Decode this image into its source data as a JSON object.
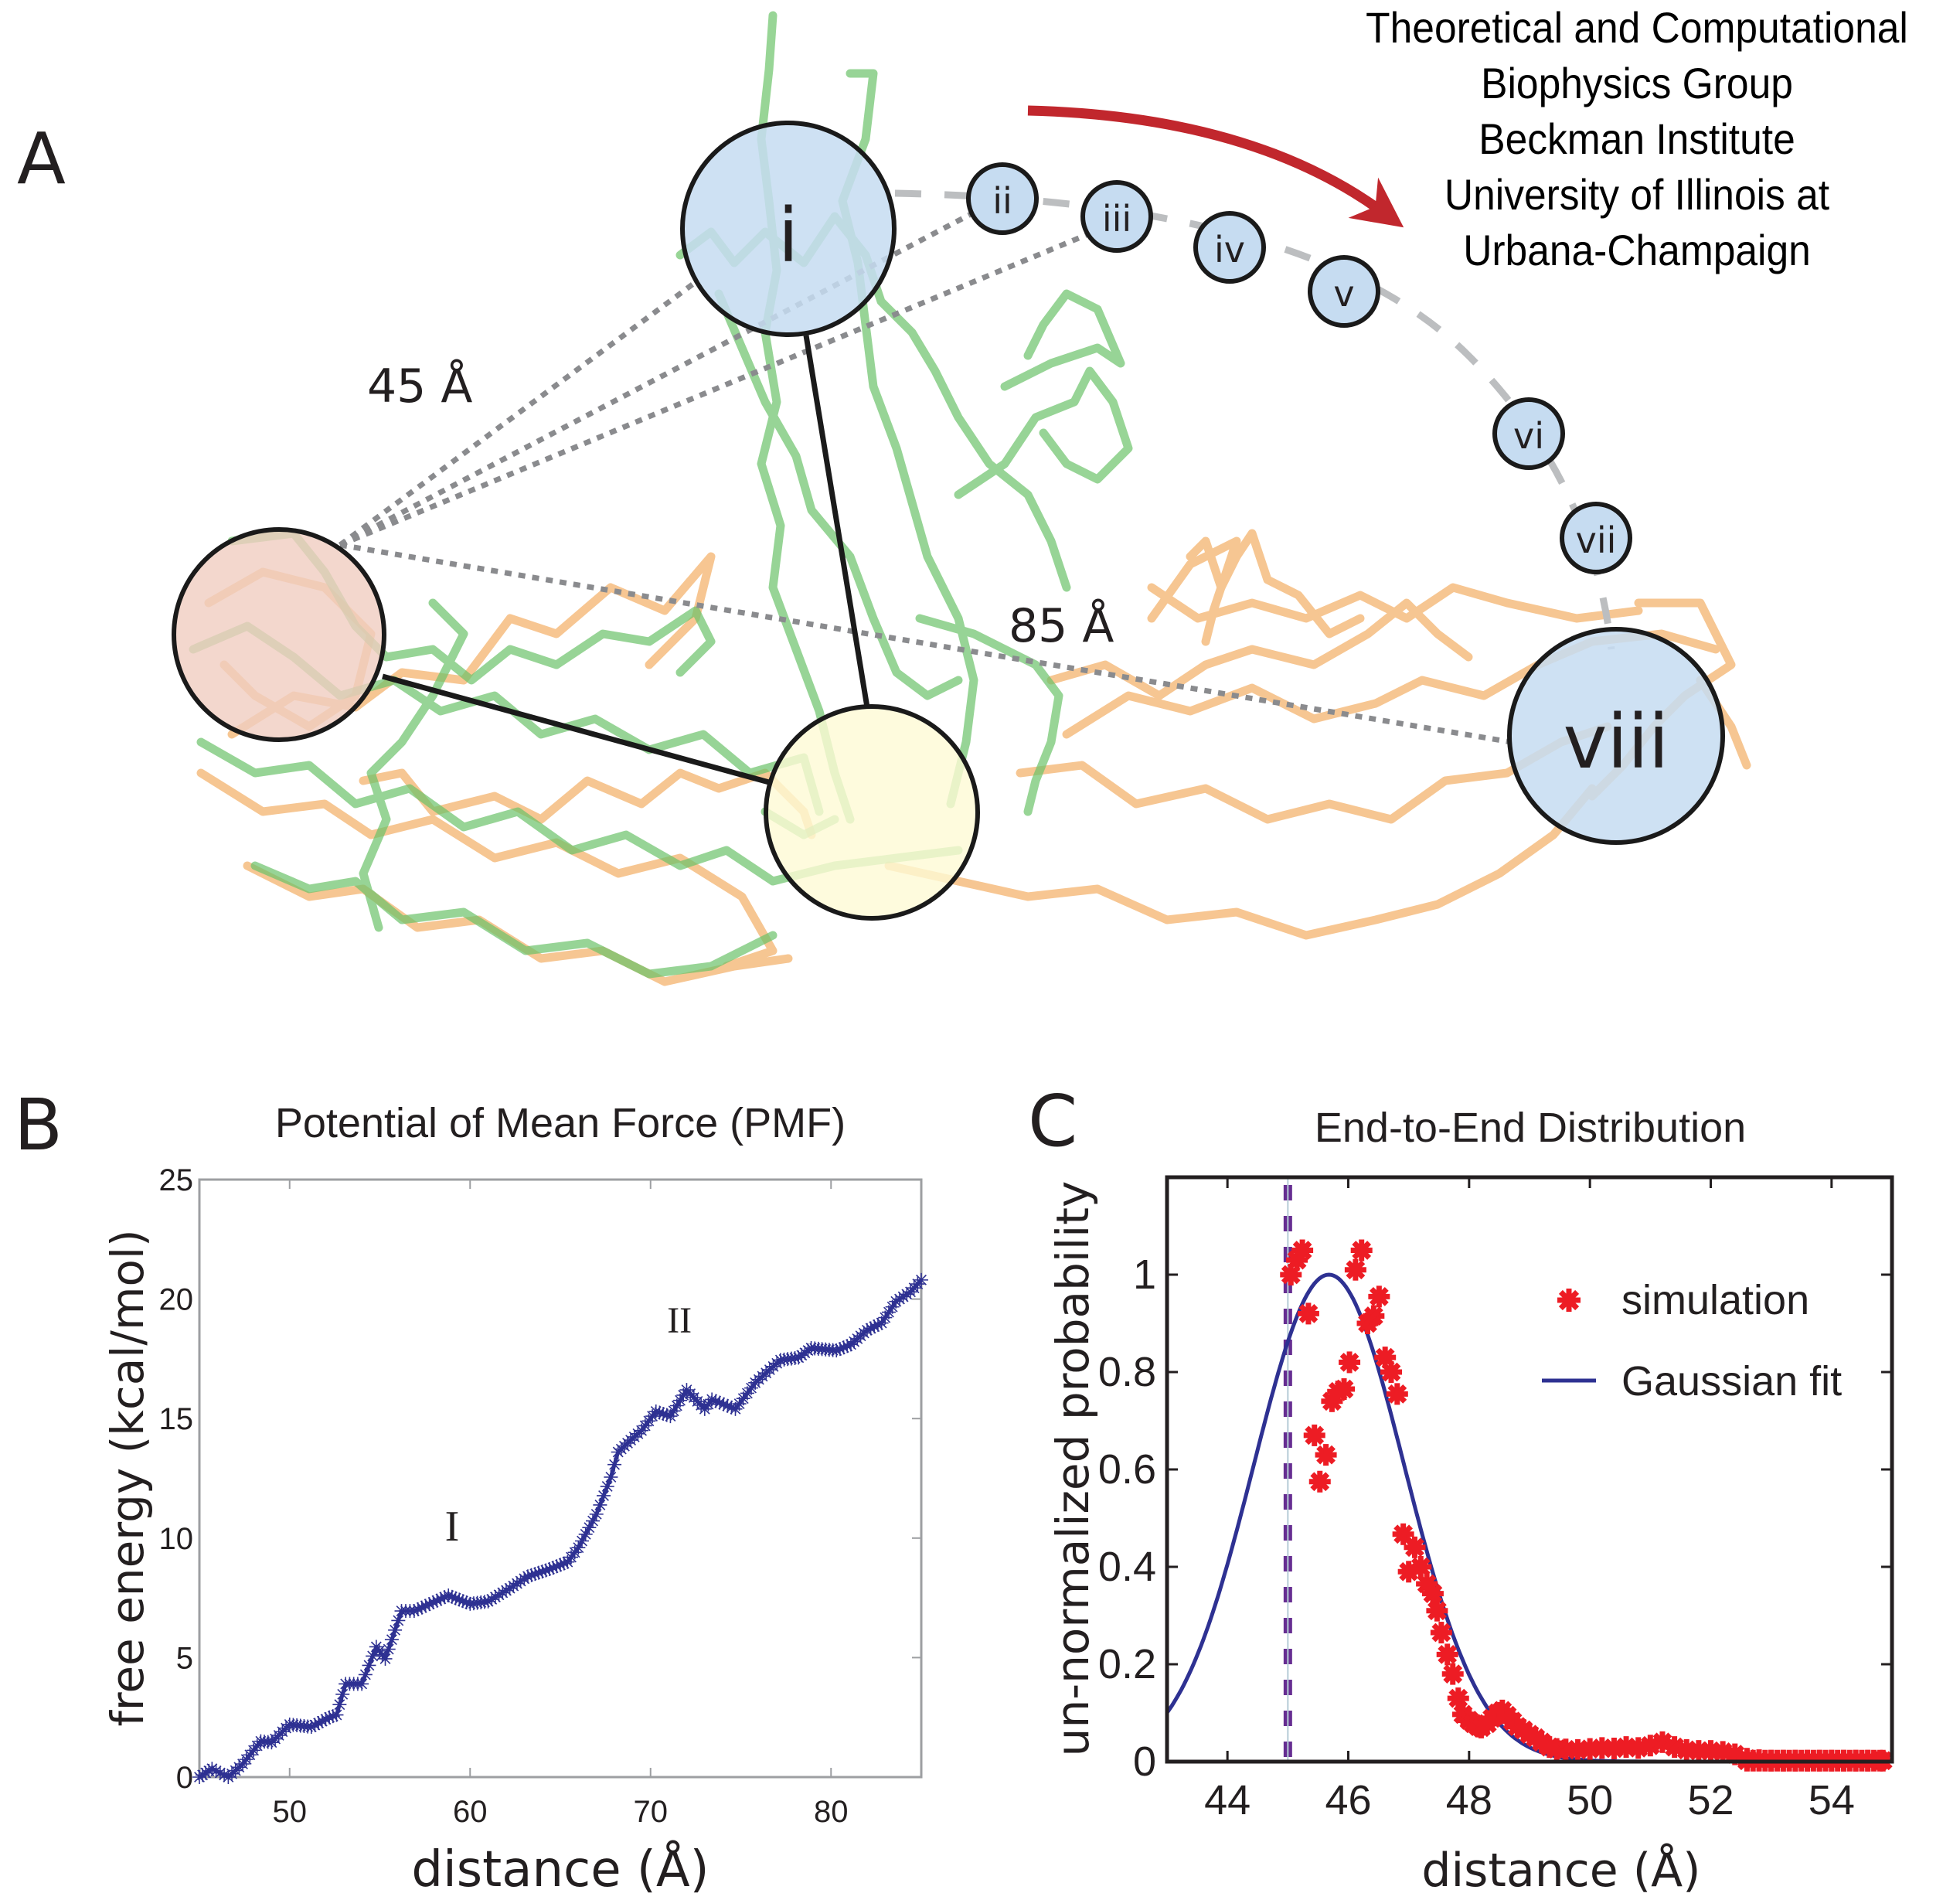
{
  "panels": {
    "a": {
      "letter": "A"
    },
    "b": {
      "letter": "B"
    },
    "c": {
      "letter": "C"
    }
  },
  "affiliation": {
    "lines": [
      "Theoretical and Computational",
      "Biophysics Group",
      "Beckman Institute",
      "University of Illinois at",
      "Urbana-Champaign"
    ]
  },
  "diagram": {
    "distance_labels": {
      "short": "45 Å",
      "long": "85 Å"
    },
    "states": [
      {
        "id": "i",
        "label": "i",
        "fill": "#c6dcf1"
      },
      {
        "id": "ii",
        "label": "ii",
        "fill": "#c6dcf1"
      },
      {
        "id": "iii",
        "label": "iii",
        "fill": "#c6dcf1"
      },
      {
        "id": "iv",
        "label": "iv",
        "fill": "#c6dcf1"
      },
      {
        "id": "v",
        "label": "v",
        "fill": "#c6dcf1"
      },
      {
        "id": "vi",
        "label": "vi",
        "fill": "#c6dcf1"
      },
      {
        "id": "vii",
        "label": "vii",
        "fill": "#c6dcf1"
      },
      {
        "id": "viii",
        "label": "viii",
        "fill": "#c6dcf1"
      }
    ],
    "anchor_colors": {
      "n_terminus": "#f0cdc0",
      "pivot": "#fefad4"
    },
    "colors": {
      "structure_green": "#6cc36a",
      "structure_orange": "#f4b36e",
      "arrow": "#c1272d",
      "path_dashes": "#bcbec0",
      "distance_dots": "#8a8b8e"
    }
  },
  "chart_data": [
    {
      "type": "line",
      "title": "Potential of Mean Force (PMF)",
      "xlabel": "distance (Å)",
      "ylabel": "free energy (kcal/mol)",
      "xlim": [
        45,
        85
      ],
      "ylim": [
        0,
        25
      ],
      "xticks": [
        50,
        60,
        70,
        80
      ],
      "yticks": [
        0,
        5,
        10,
        15,
        20,
        25
      ],
      "grid": false,
      "annotations": [
        {
          "text": "I",
          "x": 59,
          "y": 9.9
        },
        {
          "text": "II",
          "x": 71.6,
          "y": 18.6
        }
      ],
      "series": [
        {
          "name": "PMF",
          "color": "#2e3192",
          "marker": "asterisk",
          "x": [
            45.0,
            45.7,
            46.6,
            47.4,
            48.4,
            49.0,
            50.0,
            51.2,
            52.2,
            52.6,
            53.1,
            54.0,
            54.8,
            55.3,
            56.2,
            56.9,
            58.8,
            60.0,
            61.0,
            62.2,
            63.2,
            64.4,
            65.4,
            66.0,
            67.0,
            67.8,
            68.2,
            68.9,
            69.5,
            70.3,
            71.1,
            72.0,
            73.0,
            73.4,
            74.7,
            75.8,
            77.2,
            78.2,
            78.9,
            80.3,
            81.1,
            82.0,
            82.8,
            83.6,
            84.4,
            85.0
          ],
          "y": [
            0.0,
            0.35,
            0.0,
            0.55,
            1.5,
            1.45,
            2.2,
            2.1,
            2.5,
            2.6,
            3.9,
            3.9,
            5.45,
            4.95,
            6.95,
            6.95,
            7.6,
            7.25,
            7.35,
            7.9,
            8.4,
            8.7,
            9.0,
            9.6,
            11.0,
            12.55,
            13.6,
            14.1,
            14.5,
            15.3,
            15.1,
            16.2,
            15.4,
            15.8,
            15.4,
            16.5,
            17.45,
            17.55,
            17.95,
            17.85,
            18.1,
            18.7,
            19.0,
            19.9,
            20.3,
            20.8
          ]
        }
      ]
    },
    {
      "type": "scatter",
      "title": "End-to-End Distribution",
      "xlabel": "distance (Å)",
      "ylabel": "un-normalized probability",
      "xlim": [
        43,
        55
      ],
      "ylim": [
        0,
        1.2
      ],
      "xticks": [
        44,
        46,
        48,
        50,
        52,
        54
      ],
      "yticks": [
        0,
        0.2,
        0.4,
        0.6,
        0.8,
        1
      ],
      "yticklabels": [
        "0",
        "0.2",
        "0.4",
        "0.6",
        "0.8",
        "1"
      ],
      "grid": false,
      "legend": {
        "placement": "top-right",
        "entries": [
          "simulation",
          "Gaussian fit"
        ]
      },
      "reference_line": {
        "x": 45,
        "color": "#662d91",
        "style": "dashed"
      },
      "series": [
        {
          "name": "simulation",
          "color": "#ed1c24",
          "marker": "asterisk",
          "x": [
            45.05,
            45.15,
            45.24,
            45.34,
            45.44,
            45.53,
            45.63,
            45.73,
            45.83,
            45.93,
            46.02,
            46.12,
            46.22,
            46.32,
            46.42,
            46.51,
            46.61,
            46.71,
            46.81,
            46.91,
            47.0,
            47.1,
            47.2,
            47.3,
            47.4,
            47.47,
            47.54,
            47.64,
            47.73,
            47.82,
            47.9,
            48.0,
            48.07,
            48.15,
            48.2,
            48.3,
            48.38,
            48.47,
            48.55,
            48.63,
            48.72,
            48.8,
            48.9,
            49.0,
            49.1,
            49.2,
            49.33,
            49.45,
            49.6,
            49.8,
            50.0,
            50.2,
            50.4,
            50.6,
            50.8,
            51.0,
            51.2,
            51.4,
            51.6,
            51.8,
            52.0,
            52.2,
            52.4,
            52.6,
            52.8,
            53.0,
            53.2,
            53.4,
            53.6,
            53.8,
            54.0,
            54.2,
            54.4,
            54.6,
            54.85
          ],
          "y": [
            1.0,
            1.03,
            1.05,
            0.92,
            0.67,
            0.575,
            0.63,
            0.74,
            0.76,
            0.765,
            0.82,
            1.01,
            1.05,
            0.9,
            0.915,
            0.955,
            0.83,
            0.8,
            0.755,
            0.467,
            0.39,
            0.44,
            0.4,
            0.365,
            0.345,
            0.31,
            0.265,
            0.22,
            0.18,
            0.13,
            0.097,
            0.085,
            0.078,
            0.072,
            0.07,
            0.078,
            0.089,
            0.1,
            0.105,
            0.095,
            0.083,
            0.072,
            0.065,
            0.056,
            0.049,
            0.04,
            0.03,
            0.026,
            0.025,
            0.024,
            0.026,
            0.028,
            0.027,
            0.03,
            0.028,
            0.033,
            0.04,
            0.03,
            0.024,
            0.022,
            0.022,
            0.02,
            0.015,
            0.006,
            0.003,
            0.002,
            0.002,
            0.002,
            0.002,
            0.002,
            0.002,
            0.002,
            0.002,
            0.002,
            0.002
          ]
        },
        {
          "name": "Gaussian fit",
          "color": "#2e3192",
          "function": "gaussian",
          "amplitude": 1.0,
          "mean": 45.68,
          "sigma": 1.25
        }
      ]
    }
  ]
}
